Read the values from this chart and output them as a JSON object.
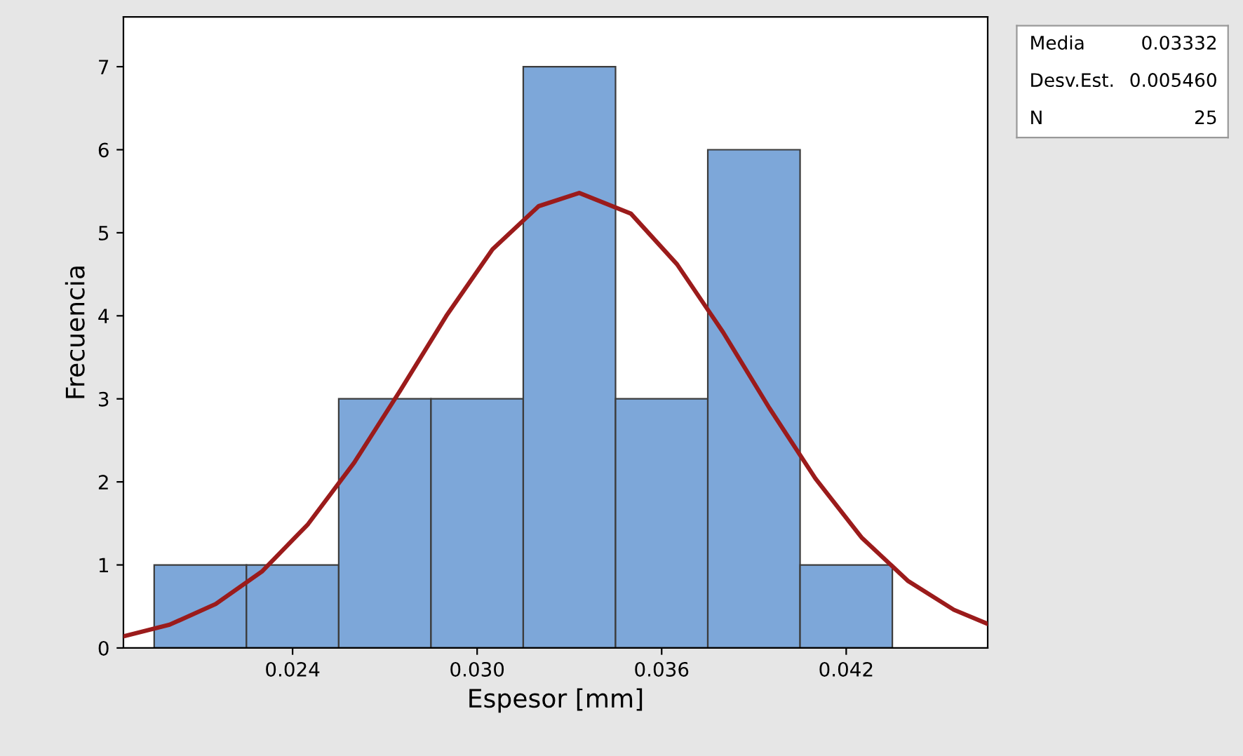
{
  "chart_data": {
    "type": "histogram",
    "xlabel": "Espesor [mm]",
    "ylabel": "Frecuencia",
    "bins": [
      0.0195,
      0.0225,
      0.0255,
      0.0285,
      0.0315,
      0.0345,
      0.0375,
      0.0405,
      0.0435
    ],
    "values": [
      1,
      1,
      3,
      3,
      7,
      3,
      6,
      1
    ],
    "color": "#7da7d9",
    "series": [
      {
        "type": "line",
        "color": "#9b1b1b",
        "x": [
          0.0185,
          0.02,
          0.0215,
          0.023,
          0.0245,
          0.026,
          0.0275,
          0.029,
          0.0305,
          0.032,
          0.03332,
          0.035,
          0.0365,
          0.038,
          0.0395,
          0.041,
          0.0425,
          0.044,
          0.0455,
          0.0466
        ],
        "values": [
          0.14,
          0.28,
          0.53,
          0.92,
          1.49,
          2.23,
          3.1,
          4.0,
          4.8,
          5.32,
          5.48,
          5.23,
          4.62,
          3.8,
          2.89,
          2.04,
          1.33,
          0.81,
          0.46,
          0.29
        ]
      }
    ],
    "xlim": [
      0.0185,
      0.0466
    ],
    "ylim": [
      0,
      7.6
    ],
    "xticks": [
      {
        "value": 0.024,
        "label": "0.024"
      },
      {
        "value": 0.03,
        "label": "0.030"
      },
      {
        "value": 0.036,
        "label": "0.036"
      },
      {
        "value": 0.042,
        "label": "0.042"
      }
    ],
    "yticks": [
      0,
      1,
      2,
      3,
      4,
      5,
      6,
      7
    ],
    "grid": false,
    "annotations": [
      "Media",
      "0.03332",
      "Desv.Est.",
      "0.005460",
      "N",
      "25"
    ]
  }
}
